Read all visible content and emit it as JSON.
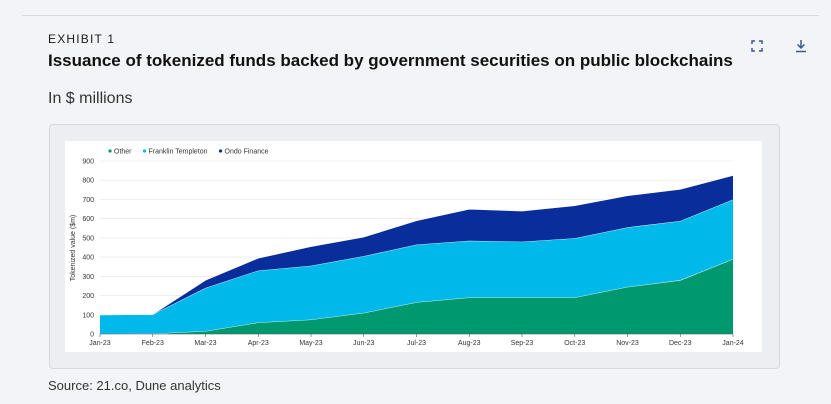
{
  "header": {
    "exhibit_label": "EXHIBIT 1",
    "title": "Issuance of tokenized funds backed by government securities on public blockchains",
    "subtitle": "In $ millions",
    "expand_icon": "expand-icon",
    "download_icon": "download-icon"
  },
  "footer": {
    "source": "Source: 21.co, Dune analytics"
  },
  "chart_data": {
    "type": "area",
    "stacked": true,
    "title": "",
    "xlabel": "",
    "ylabel": "Tokenized value ($m)",
    "ylim": [
      0,
      900
    ],
    "yticks": [
      0,
      100,
      200,
      300,
      400,
      500,
      600,
      700,
      800,
      900
    ],
    "grid": true,
    "legend_position": "top-left",
    "categories": [
      "Jan-23",
      "Feb-23",
      "Mar-23",
      "Apr-23",
      "May-23",
      "Jun-23",
      "Jul-23",
      "Aug-23",
      "Sep-23",
      "Oct-23",
      "Nov-23",
      "Dec-23",
      "Jan-24"
    ],
    "series": [
      {
        "name": "Other",
        "color": "#00996e",
        "values": [
          0,
          2,
          15,
          60,
          75,
          110,
          165,
          190,
          190,
          190,
          245,
          280,
          390
        ]
      },
      {
        "name": "Franklin Templeton",
        "color": "#00b9eb",
        "values": [
          100,
          100,
          225,
          270,
          280,
          295,
          300,
          295,
          290,
          308,
          310,
          308,
          310
        ]
      },
      {
        "name": "Ondo Finance",
        "color": "#0a2d9c",
        "values": [
          0,
          0,
          40,
          65,
          100,
          100,
          125,
          165,
          160,
          170,
          165,
          165,
          125
        ]
      }
    ]
  }
}
